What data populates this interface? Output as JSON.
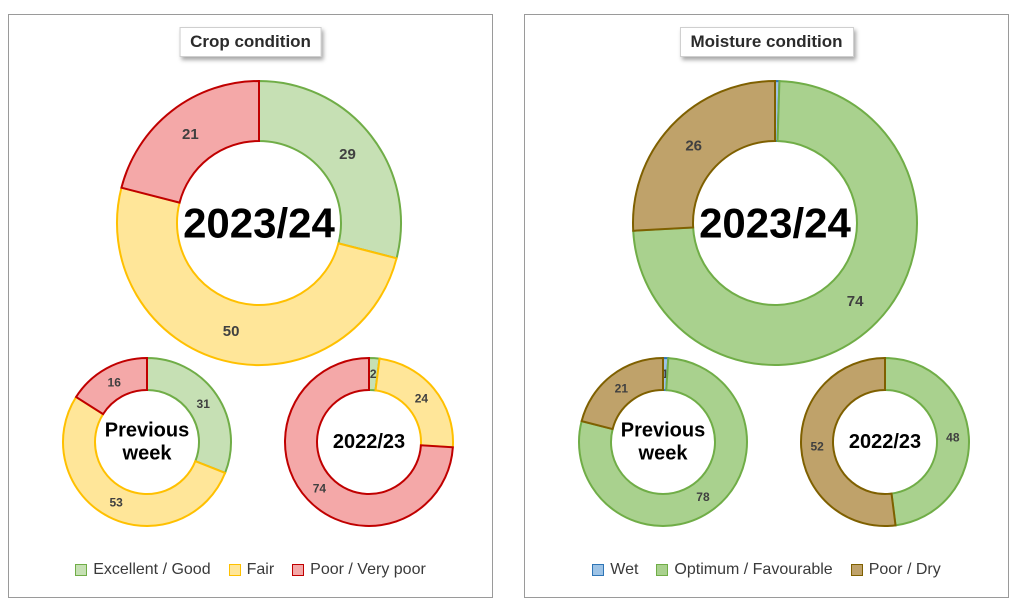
{
  "chart_data": [
    {
      "type": "pie",
      "title": "Crop condition",
      "legend": [
        "Excellent / Good",
        "Fair",
        "Poor / Very poor"
      ],
      "legend_placement": "bottom",
      "colors": {
        "fill": [
          "#c6e0b4",
          "#ffe699",
          "#f4a8a8"
        ],
        "stroke": [
          "#70ad47",
          "#ffc000",
          "#c00000"
        ]
      },
      "donuts": [
        {
          "center_label": "2023/24",
          "values": [
            29,
            50,
            21
          ]
        },
        {
          "center_label": "Previous week",
          "values": [
            31,
            53,
            16
          ]
        },
        {
          "center_label": "2022/23",
          "values": [
            2,
            24,
            74
          ]
        }
      ]
    },
    {
      "type": "pie",
      "title": "Moisture condition",
      "legend": [
        "Wet",
        "Optimum / Favourable",
        "Poor / Dry"
      ],
      "legend_placement": "bottom",
      "colors": {
        "fill": [
          "#9dc3e6",
          "#a9d18e",
          "#bfa26a"
        ],
        "stroke": [
          "#2e75b6",
          "#70ad47",
          "#7f6000"
        ]
      },
      "donuts": [
        {
          "center_label": "2023/24",
          "values": [
            0.5,
            74,
            26
          ],
          "labels": [
            "",
            "74",
            "26"
          ]
        },
        {
          "center_label": "Previous week",
          "values": [
            1,
            78,
            21
          ]
        },
        {
          "center_label": "2022/23",
          "values": [
            0,
            48,
            52
          ],
          "labels": [
            "",
            "48",
            "52"
          ]
        }
      ]
    }
  ]
}
